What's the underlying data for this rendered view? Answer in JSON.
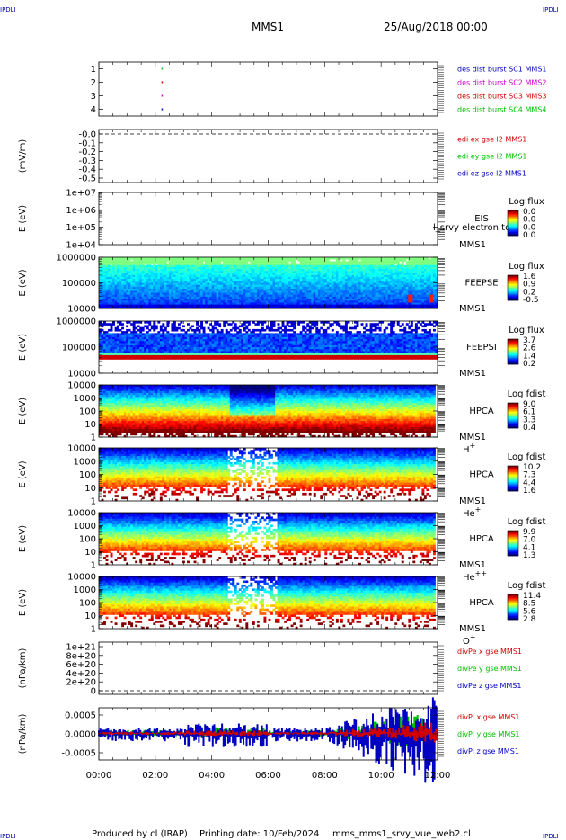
{
  "header": {
    "corner_tl": "IPDLI",
    "corner_tr": "IPDLI",
    "corner_bl": "IPDLI",
    "corner_br": "IPDLI",
    "spacecraft": "MMS1",
    "date": "25/Aug/2018 00:00"
  },
  "footer": {
    "produced": "Produced by cl (IRAP)",
    "printing": "Printing date: 10/Feb/2024",
    "file": "mms_mms1_srvy_vue_web2.cl"
  },
  "colors": {
    "red": "#d00000",
    "green": "#00c000",
    "blue": "#0000c0",
    "magenta": "#d000d0"
  },
  "chart_data": [
    {
      "type": "scatter",
      "id": "burst",
      "yticks": [
        "1",
        "2",
        "3",
        "4"
      ],
      "ylim": [
        0.5,
        4.5
      ],
      "legend": [
        {
          "label": "des dist burst SC1 MMS1",
          "color": "#0000c0"
        },
        {
          "label": "des dist burst SC2 MMS2",
          "color": "#d000d0"
        },
        {
          "label": "des dist burst SC3 MMS3",
          "color": "#d00000"
        },
        {
          "label": "des dist burst SC4 MMS4",
          "color": "#00c000"
        }
      ],
      "points": [
        {
          "x": 2.22,
          "y": 4,
          "color": "#00c000"
        },
        {
          "x": 2.22,
          "y": 3,
          "color": "#d00000"
        },
        {
          "x": 2.22,
          "y": 2,
          "color": "#d000d0"
        },
        {
          "x": 2.22,
          "y": 1,
          "color": "#0000c0"
        }
      ]
    },
    {
      "type": "line",
      "id": "edi",
      "ylabel": "(mV/m)",
      "yticks": [
        "-0.0",
        "-0.1",
        "-0.2",
        "-0.3",
        "-0.4",
        "-0.5"
      ],
      "ylim": [
        -0.5,
        0.0
      ],
      "dashed_zero": true,
      "legend": [
        {
          "label": "edi ex gse l2 MMS1",
          "color": "#d00000"
        },
        {
          "label": "edi ey gse l2 MMS1",
          "color": "#00c000"
        },
        {
          "label": "edi ez gse l2 MMS1",
          "color": "#0000c0"
        }
      ]
    },
    {
      "type": "heatmap",
      "id": "eis",
      "ylabel": "E (eV)",
      "yticks": [
        "1e+07",
        "1e+06",
        "1e+05",
        "1e+04"
      ],
      "instrument": "EIS",
      "species": "",
      "spacecraft": "MMS1",
      "overlay": "l_srvy_electron_to",
      "colorbar": {
        "title": "Log flux",
        "ticks": [
          "0.0",
          "0.0",
          "0.0",
          "0.0"
        ]
      },
      "empty": true
    },
    {
      "type": "heatmap",
      "id": "feepse",
      "ylabel": "E (eV)",
      "yticks": [
        "1000000",
        "100000",
        "10000"
      ],
      "instrument": "FEEPSE",
      "species": "",
      "spacecraft": "MMS1",
      "colorbar": {
        "title": "Log flux",
        "ticks": [
          "1.6",
          "0.9",
          "0.2",
          "-0.5"
        ]
      }
    },
    {
      "type": "heatmap",
      "id": "feepsi",
      "ylabel": "E (eV)",
      "yticks": [
        "1000000",
        "100000",
        "10000"
      ],
      "instrument": "FEEPSI",
      "species": "",
      "spacecraft": "MMS1",
      "colorbar": {
        "title": "Log flux",
        "ticks": [
          "3.7",
          "2.6",
          "1.4",
          "0.2"
        ]
      }
    },
    {
      "type": "heatmap",
      "id": "hpca_h",
      "ylabel": "E (eV)",
      "yticks": [
        "10000",
        "1000",
        "100",
        "10",
        "1"
      ],
      "instrument": "HPCA",
      "species": "H+",
      "spacecraft": "MMS1",
      "colorbar": {
        "title": "Log fdist",
        "ticks": [
          "9.0",
          "6.1",
          "3.3",
          "0.4"
        ]
      }
    },
    {
      "type": "heatmap",
      "id": "hpca_he",
      "ylabel": "E (eV)",
      "yticks": [
        "10000",
        "1000",
        "100",
        "10",
        "1"
      ],
      "instrument": "HPCA",
      "species": "He+",
      "spacecraft": "MMS1",
      "colorbar": {
        "title": "Log fdist",
        "ticks": [
          "10.2",
          "7.3",
          "4.4",
          "1.6"
        ]
      }
    },
    {
      "type": "heatmap",
      "id": "hpca_hepp",
      "ylabel": "E (eV)",
      "yticks": [
        "10000",
        "1000",
        "100",
        "10",
        "1"
      ],
      "instrument": "HPCA",
      "species": "He++",
      "spacecraft": "MMS1",
      "colorbar": {
        "title": "Log fdist",
        "ticks": [
          "9.9",
          "7.0",
          "4.1",
          "1.3"
        ]
      }
    },
    {
      "type": "heatmap",
      "id": "hpca_o",
      "ylabel": "E (eV)",
      "yticks": [
        "10000",
        "1000",
        "100",
        "10",
        "1"
      ],
      "instrument": "HPCA",
      "species": "O+",
      "spacecraft": "MMS1",
      "colorbar": {
        "title": "Log fdist",
        "ticks": [
          "11.4",
          "8.5",
          "5.6",
          "2.8"
        ]
      }
    },
    {
      "type": "line",
      "id": "divpe",
      "ylabel": "(nPa/km)",
      "yticks": [
        "1e+21",
        "8e+20",
        "6e+20",
        "4e+20",
        "2e+20",
        "0"
      ],
      "ylim": [
        0,
        1e+21
      ],
      "dashed_zero": true,
      "legend": [
        {
          "label": "divPe x gse MMS1",
          "color": "#d00000"
        },
        {
          "label": "divPe y gse MMS1",
          "color": "#00c000"
        },
        {
          "label": "divPe z gse MMS1",
          "color": "#0000c0"
        }
      ]
    },
    {
      "type": "line",
      "id": "divpi",
      "ylabel": "(nPa/km)",
      "yticks": [
        "0.0005",
        "0.0000",
        "-0.0005"
      ],
      "ylim": [
        -0.00085,
        0.00082
      ],
      "legend": [
        {
          "label": "divPi x gse MMS1",
          "color": "#d00000"
        },
        {
          "label": "divPi y gse MMS1",
          "color": "#00c000"
        },
        {
          "label": "divPi z gse MMS1",
          "color": "#0000c0"
        }
      ]
    }
  ],
  "x_axis": {
    "ticks": [
      "00:00",
      "02:00",
      "04:00",
      "06:00",
      "08:00",
      "10:00",
      "12:00"
    ],
    "xlim": [
      0,
      12
    ]
  }
}
